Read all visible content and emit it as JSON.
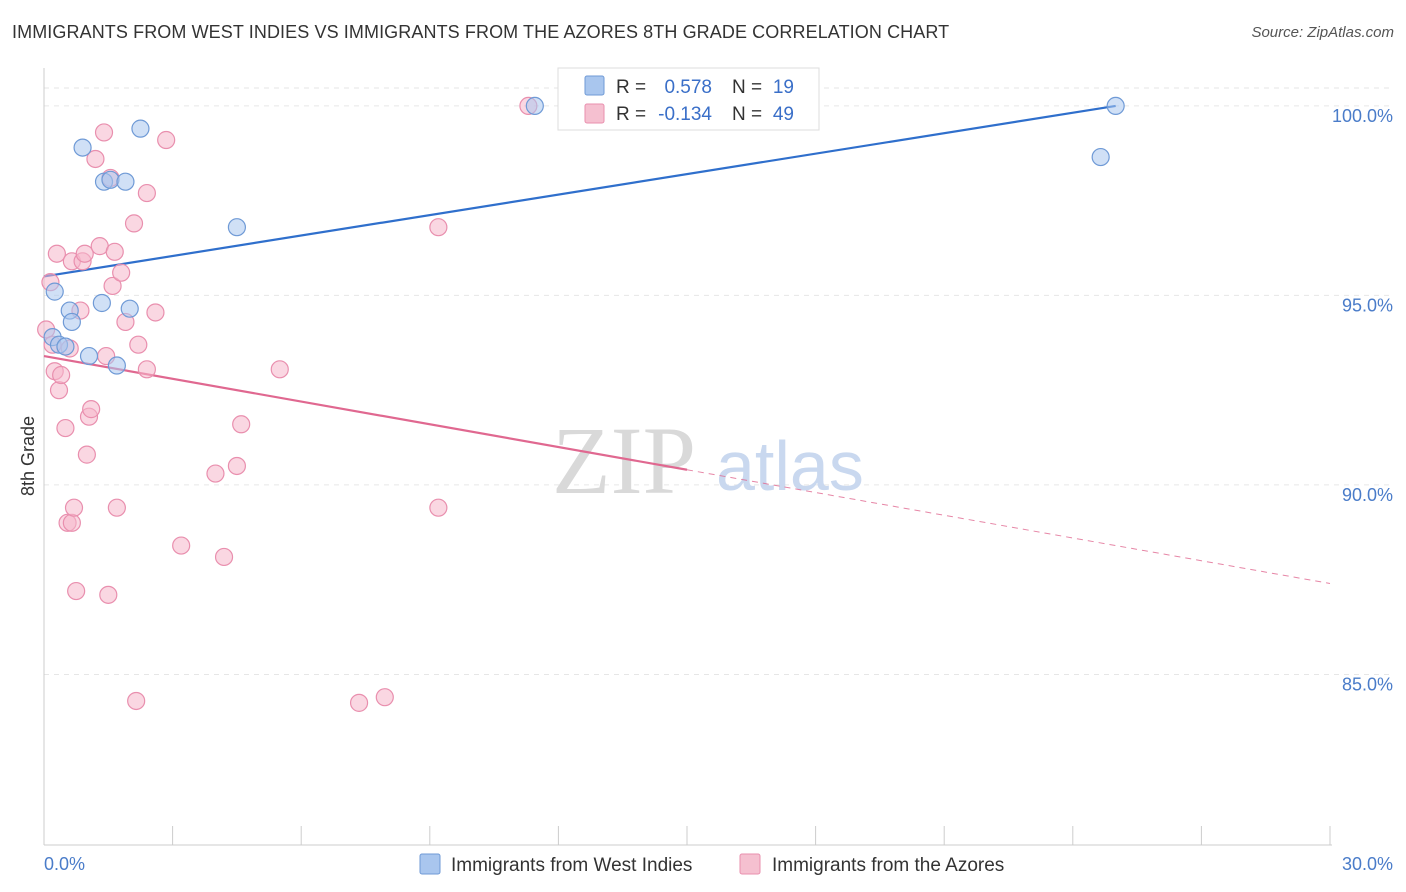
{
  "title": "IMMIGRANTS FROM WEST INDIES VS IMMIGRANTS FROM THE AZORES 8TH GRADE CORRELATION CHART",
  "source": "Source: ZipAtlas.com",
  "watermark": {
    "zip": "ZIP",
    "atlas": "atlas"
  },
  "colors": {
    "blue_fill": "#a9c6ee",
    "blue_stroke": "#6f9ad6",
    "blue_line": "#2f6fcc",
    "pink_fill": "#f5b6ca",
    "pink_stroke": "#e98fae",
    "pink_line": "#e06890",
    "grid": "#e6e6e6",
    "tick_text": "#4a7cc9"
  },
  "stats_box": {
    "rows": [
      {
        "r_label": "R =",
        "r_value": "0.578",
        "n_label": "N =",
        "n_value": "19"
      },
      {
        "r_label": "R =",
        "r_value": "-0.134",
        "n_label": "N =",
        "n_value": "49"
      }
    ]
  },
  "chart_data": {
    "type": "scatter",
    "title": "IMMIGRANTS FROM WEST INDIES VS IMMIGRANTS FROM THE AZORES 8TH GRADE CORRELATION CHART",
    "xlabel": "",
    "ylabel": "8th Grade",
    "xlim": [
      0,
      30
    ],
    "ylim": [
      80.5,
      101.0
    ],
    "x_tick_labels": {
      "left": "0.0%",
      "right": "30.0%"
    },
    "x_minor_ticks": [
      0,
      3,
      6,
      9,
      12,
      15,
      18,
      21,
      24,
      27,
      30
    ],
    "y_ticks": [
      {
        "value": 100,
        "label": "100.0%"
      },
      {
        "value": 95,
        "label": "95.0%"
      },
      {
        "value": 90,
        "label": "90.0%"
      },
      {
        "value": 85,
        "label": "85.0%"
      }
    ],
    "legend": [
      "Immigrants from West Indies",
      "Immigrants from the Azores"
    ],
    "series": [
      {
        "name": "Immigrants from West Indies",
        "color": "blue",
        "points": [
          [
            0.2,
            93.9
          ],
          [
            0.25,
            95.1
          ],
          [
            0.35,
            93.7
          ],
          [
            0.5,
            93.65
          ],
          [
            0.6,
            94.6
          ],
          [
            0.65,
            94.3
          ],
          [
            0.9,
            98.9
          ],
          [
            1.05,
            93.4
          ],
          [
            1.35,
            94.8
          ],
          [
            1.4,
            98.0
          ],
          [
            1.55,
            98.05
          ],
          [
            1.7,
            93.15
          ],
          [
            1.9,
            98.0
          ],
          [
            2.0,
            94.65
          ],
          [
            2.25,
            99.4
          ],
          [
            4.5,
            96.8
          ],
          [
            11.45,
            100.0
          ],
          [
            24.65,
            98.65
          ],
          [
            25.0,
            100.0
          ]
        ],
        "trend": {
          "x0": 0.0,
          "y0": 95.5,
          "x1": 25.0,
          "y1": 100.0
        }
      },
      {
        "name": "Immigrants from the Azores",
        "color": "pink",
        "points": [
          [
            0.05,
            94.1
          ],
          [
            0.15,
            95.35
          ],
          [
            0.2,
            93.7
          ],
          [
            0.25,
            93.0
          ],
          [
            0.3,
            96.1
          ],
          [
            0.35,
            92.5
          ],
          [
            0.4,
            92.9
          ],
          [
            0.5,
            91.5
          ],
          [
            0.55,
            89.0
          ],
          [
            0.6,
            93.6
          ],
          [
            0.65,
            95.9
          ],
          [
            0.65,
            89.0
          ],
          [
            0.7,
            89.4
          ],
          [
            0.75,
            87.2
          ],
          [
            0.85,
            94.6
          ],
          [
            0.9,
            95.9
          ],
          [
            0.95,
            96.1
          ],
          [
            1.0,
            90.8
          ],
          [
            1.05,
            91.8
          ],
          [
            1.1,
            92.0
          ],
          [
            1.2,
            98.6
          ],
          [
            1.3,
            96.3
          ],
          [
            1.4,
            99.3
          ],
          [
            1.45,
            93.4
          ],
          [
            1.5,
            87.1
          ],
          [
            1.55,
            98.1
          ],
          [
            1.6,
            95.25
          ],
          [
            1.65,
            96.15
          ],
          [
            1.7,
            89.4
          ],
          [
            1.8,
            95.6
          ],
          [
            1.9,
            94.3
          ],
          [
            2.1,
            96.9
          ],
          [
            2.15,
            84.3
          ],
          [
            2.2,
            93.7
          ],
          [
            2.4,
            97.7
          ],
          [
            2.4,
            93.05
          ],
          [
            2.6,
            94.55
          ],
          [
            2.85,
            99.1
          ],
          [
            3.2,
            88.4
          ],
          [
            4.0,
            90.3
          ],
          [
            4.2,
            88.1
          ],
          [
            4.5,
            90.5
          ],
          [
            4.6,
            91.6
          ],
          [
            5.5,
            93.05
          ],
          [
            7.35,
            84.25
          ],
          [
            7.95,
            84.4
          ],
          [
            9.2,
            96.8
          ],
          [
            9.2,
            89.4
          ],
          [
            11.3,
            100.0
          ]
        ],
        "trend": {
          "x0": 0.0,
          "y0": 93.4,
          "x1": 15.0,
          "y1": 90.4
        },
        "trend_extension": {
          "x0": 15.0,
          "y0": 90.4,
          "x1": 30.0,
          "y1": 87.4
        }
      }
    ]
  }
}
